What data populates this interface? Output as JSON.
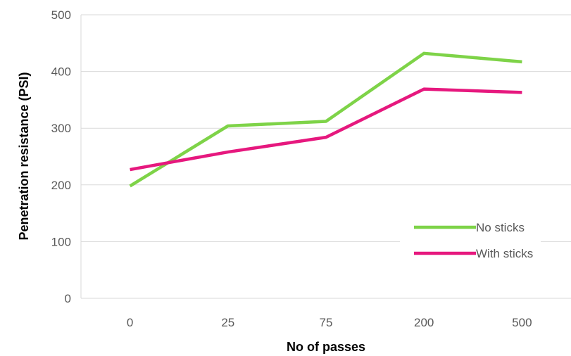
{
  "chart_data": {
    "type": "line",
    "title": "",
    "xlabel": "No of passes",
    "ylabel": "Penetration resistance (PSI)",
    "categories": [
      "0",
      "25",
      "75",
      "200",
      "500"
    ],
    "y_ticks": [
      "0",
      "100",
      "200",
      "300",
      "400",
      "500"
    ],
    "ylim": [
      0,
      500
    ],
    "grid": true,
    "legend_position": "bottom-right",
    "series": [
      {
        "name": "No sticks",
        "color": "#7ED348",
        "values": [
          198,
          304,
          312,
          432,
          417
        ]
      },
      {
        "name": "With sticks",
        "color": "#E6187E",
        "values": [
          227,
          258,
          284,
          369,
          363
        ]
      }
    ]
  }
}
